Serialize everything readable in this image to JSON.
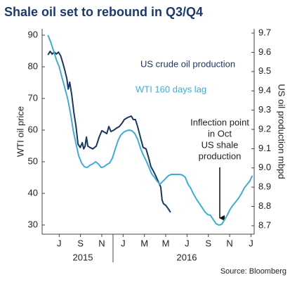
{
  "chart_data": {
    "type": "line",
    "title": "Shale oil set to rebound in Q3/Q4",
    "ylabel": "WTI oil price",
    "y2label": "US oil production mbpd",
    "source": "Source: Bloomberg",
    "annotation": [
      "Inflection point",
      "in Oct",
      "US shale",
      "production"
    ],
    "years": [
      "2015",
      "2016"
    ],
    "xlim": [
      -1.6,
      18.3
    ],
    "xticks": [
      {
        "value": 0,
        "label": "J"
      },
      {
        "value": 2,
        "label": "S"
      },
      {
        "value": 4,
        "label": "N"
      },
      {
        "value": 6,
        "label": "J"
      },
      {
        "value": 8,
        "label": "M"
      },
      {
        "value": 10,
        "label": "M"
      },
      {
        "value": 12,
        "label": "J"
      },
      {
        "value": 14,
        "label": "S"
      },
      {
        "value": 16,
        "label": "N"
      },
      {
        "value": 18,
        "label": "J"
      }
    ],
    "ylim": [
      27.1,
      92
    ],
    "yticks": [
      30,
      40,
      50,
      60,
      70,
      80,
      90
    ],
    "y2lim": [
      8.656,
      9.722
    ],
    "y2ticks": [
      8.7,
      8.8,
      8.9,
      {
        "value": 9,
        "label": "9.0"
      },
      9.1,
      9.2,
      9.3,
      9.4,
      9.5,
      9.6,
      9.7
    ],
    "series": [
      {
        "name": "US crude oil production",
        "color": "#17375e",
        "axis": "y2",
        "x": [
          -1.05,
          -0.85,
          -0.66,
          -0.46,
          -0.26,
          -0.07,
          0.13,
          0.33,
          0.53,
          0.72,
          0.85,
          0.99,
          1.18,
          1.38,
          1.58,
          1.77,
          1.97,
          2.17,
          2.3,
          2.43,
          2.56,
          2.69,
          2.89,
          3.15,
          3.48,
          3.75,
          4.01,
          4.27,
          4.47,
          4.66,
          4.86,
          5.12,
          5.39,
          5.65,
          5.91,
          6.11,
          6.44,
          6.77,
          6.96,
          7.16,
          7.36,
          7.62,
          7.88,
          8.15,
          8.41,
          8.61,
          8.8,
          9.0,
          9.26,
          9.53,
          9.66,
          9.79,
          9.99,
          10.18,
          10.45
        ],
        "values": [
          9.587,
          9.605,
          9.591,
          9.601,
          9.591,
          9.601,
          9.583,
          9.547,
          9.507,
          9.463,
          9.409,
          9.445,
          9.379,
          9.288,
          9.215,
          9.124,
          9.106,
          9.131,
          9.099,
          9.113,
          9.16,
          9.113,
          9.106,
          9.099,
          9.113,
          9.16,
          9.193,
          9.185,
          9.178,
          9.215,
          9.189,
          9.196,
          9.207,
          9.215,
          9.233,
          9.251,
          9.262,
          9.269,
          9.251,
          9.251,
          9.215,
          9.16,
          9.106,
          9.099,
          9.05,
          9.007,
          8.988,
          8.966,
          8.934,
          8.901,
          8.832,
          8.814,
          8.806,
          8.792,
          8.77
        ]
      },
      {
        "name": "WTI 160 days lag",
        "color": "#41acd2",
        "axis": "y",
        "x": [
          -1.05,
          -0.79,
          -0.53,
          -0.26,
          0,
          0.26,
          0.53,
          0.79,
          1.05,
          1.31,
          1.58,
          1.84,
          2.1,
          2.37,
          2.63,
          2.89,
          3.15,
          3.42,
          3.68,
          3.94,
          4.2,
          4.47,
          4.73,
          4.99,
          5.26,
          5.52,
          5.78,
          6.05,
          6.31,
          6.57,
          6.83,
          7.1,
          7.36,
          7.62,
          7.88,
          8.15,
          8.41,
          8.67,
          8.94,
          9.2,
          9.46,
          9.72,
          9.99,
          10.25,
          10.51,
          10.78,
          11.04,
          11.3,
          11.56,
          11.83,
          12.09,
          12.35,
          12.61,
          12.88,
          13.14,
          13.4,
          13.67,
          13.93,
          14.19,
          14.45,
          14.72,
          14.98,
          15.24,
          15.51,
          15.77,
          16.03,
          16.29,
          16.56,
          16.82,
          17.08,
          17.35,
          17.61,
          17.87,
          18.13
        ],
        "values": [
          90,
          87.8,
          85.1,
          82.2,
          80,
          76.7,
          73.3,
          70,
          65.6,
          60,
          55.6,
          51.8,
          49.6,
          48.4,
          48.2,
          48.9,
          49.3,
          50,
          49.3,
          48.2,
          48.4,
          49.1,
          49.6,
          51.1,
          54,
          56.7,
          58.4,
          59.3,
          59.8,
          60,
          59.8,
          58.9,
          57.1,
          54.4,
          52.2,
          50.4,
          48.4,
          46.2,
          45.1,
          43.8,
          42.9,
          43.8,
          44.7,
          45.6,
          46,
          46,
          46,
          46,
          45.8,
          45.1,
          42.9,
          41.6,
          39.8,
          38.2,
          36.9,
          35.6,
          34.2,
          33.3,
          33.1,
          31.8,
          30.4,
          30,
          30.2,
          31.6,
          33.1,
          34.9,
          36.2,
          37.3,
          38.4,
          39.8,
          41.6,
          42.7,
          43.8,
          45.6
        ]
      }
    ]
  }
}
